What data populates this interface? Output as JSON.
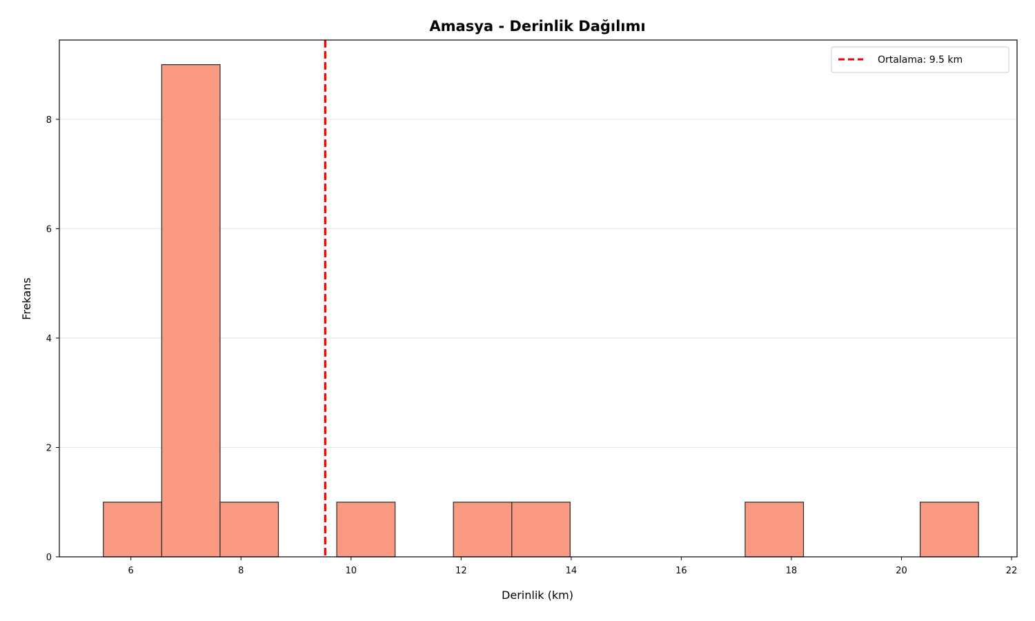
{
  "chart_data": {
    "type": "bar",
    "title": "Amasya - Derinlik Dağılımı",
    "xlabel": "Derinlik (km)",
    "ylabel": "Frekans",
    "xlim": [
      4.7,
      22.1
    ],
    "ylim": [
      0,
      9.45
    ],
    "xticks": [
      6,
      8,
      10,
      12,
      14,
      16,
      18,
      20,
      22
    ],
    "yticks": [
      0,
      2,
      4,
      6,
      8
    ],
    "grid": "y",
    "legend_position": "top-right",
    "bins": [
      {
        "start": 5.5,
        "end": 6.56,
        "count": 1
      },
      {
        "start": 6.56,
        "end": 7.62,
        "count": 9
      },
      {
        "start": 7.62,
        "end": 8.68,
        "count": 1
      },
      {
        "start": 9.74,
        "end": 10.8,
        "count": 1
      },
      {
        "start": 11.86,
        "end": 12.92,
        "count": 1
      },
      {
        "start": 12.92,
        "end": 13.98,
        "count": 1
      },
      {
        "start": 17.16,
        "end": 18.22,
        "count": 1
      },
      {
        "start": 20.34,
        "end": 21.4,
        "count": 1
      }
    ],
    "bar_color": "#fa9a82",
    "bar_edge_color": "#333333",
    "mean_line": {
      "value": 9.53,
      "label": "Ortalama: 9.5 km",
      "color": "#ee0000"
    }
  }
}
